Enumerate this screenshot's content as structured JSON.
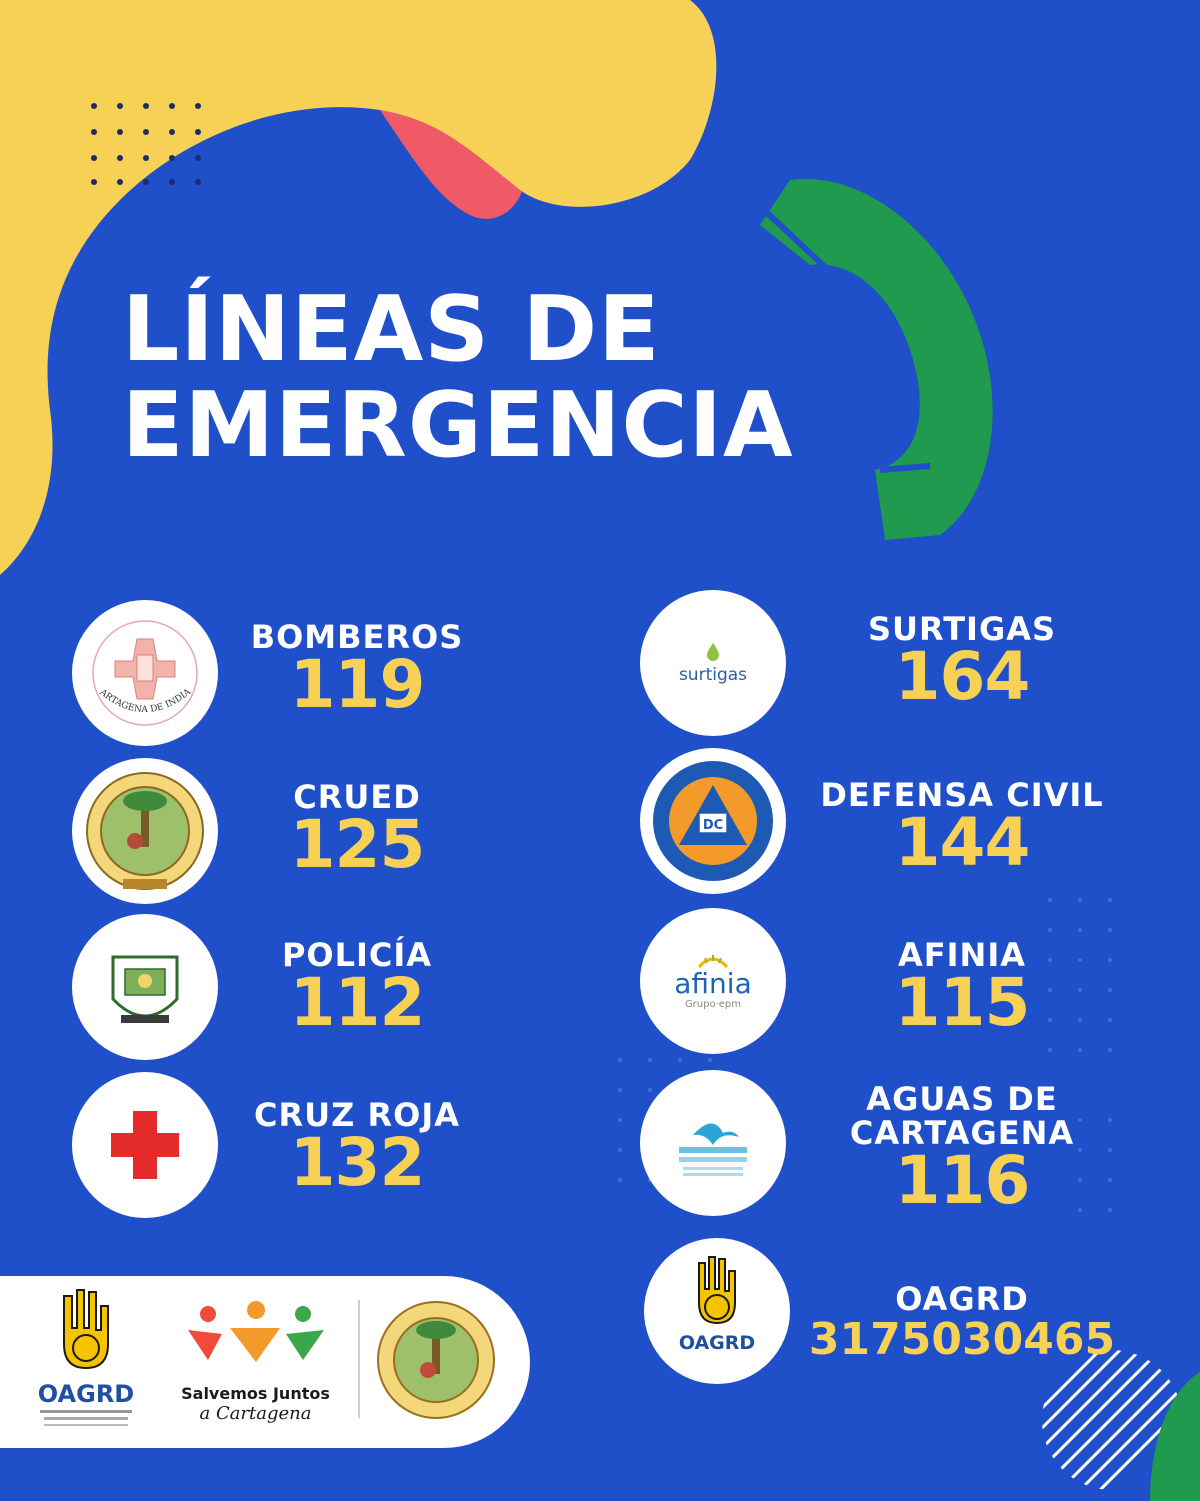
{
  "title": {
    "line1": "LÍNEAS DE",
    "line2": "EMERGENCIA"
  },
  "colors": {
    "background": "#1f4fc9",
    "yellow": "#f6d155",
    "pink": "#f05a67",
    "green": "#1f9a4f",
    "white": "#ffffff",
    "red": "#e52a2a"
  },
  "left_entries": [
    {
      "name": "BOMBEROS",
      "number": "119",
      "icon": "bomberos-cartagena-logo",
      "logo_text": "CARTAGENA DE INDIAS"
    },
    {
      "name": "CRUED",
      "number": "125",
      "icon": "cartagena-seal-logo"
    },
    {
      "name": "POLICÍA",
      "number": "112",
      "icon": "policia-logo"
    },
    {
      "name": "CRUZ ROJA",
      "number": "132",
      "icon": "red-cross-icon"
    }
  ],
  "right_entries": [
    {
      "name": "SURTIGAS",
      "number": "164",
      "icon": "surtigas-logo",
      "logo_text": "surtigas"
    },
    {
      "name": "DEFENSA CIVIL",
      "number": "144",
      "icon": "defensa-civil-logo",
      "logo_text": "DC"
    },
    {
      "name": "AFINIA",
      "number": "115",
      "icon": "afinia-logo",
      "logo_text": "afinia",
      "logo_sub": "Grupo·epm"
    },
    {
      "name": "AGUAS DE",
      "name2": "CARTAGENA",
      "number": "116",
      "icon": "aguas-de-cartagena-logo"
    },
    {
      "name": "OAGRD",
      "number": "3175030465",
      "icon": "oagrd-logo",
      "logo_text": "OAGRD"
    }
  ],
  "footer": {
    "oagrd_label": "OAGRD",
    "salvemos_line1": "Salvemos Juntos",
    "salvemos_line2": "a Cartagena"
  }
}
